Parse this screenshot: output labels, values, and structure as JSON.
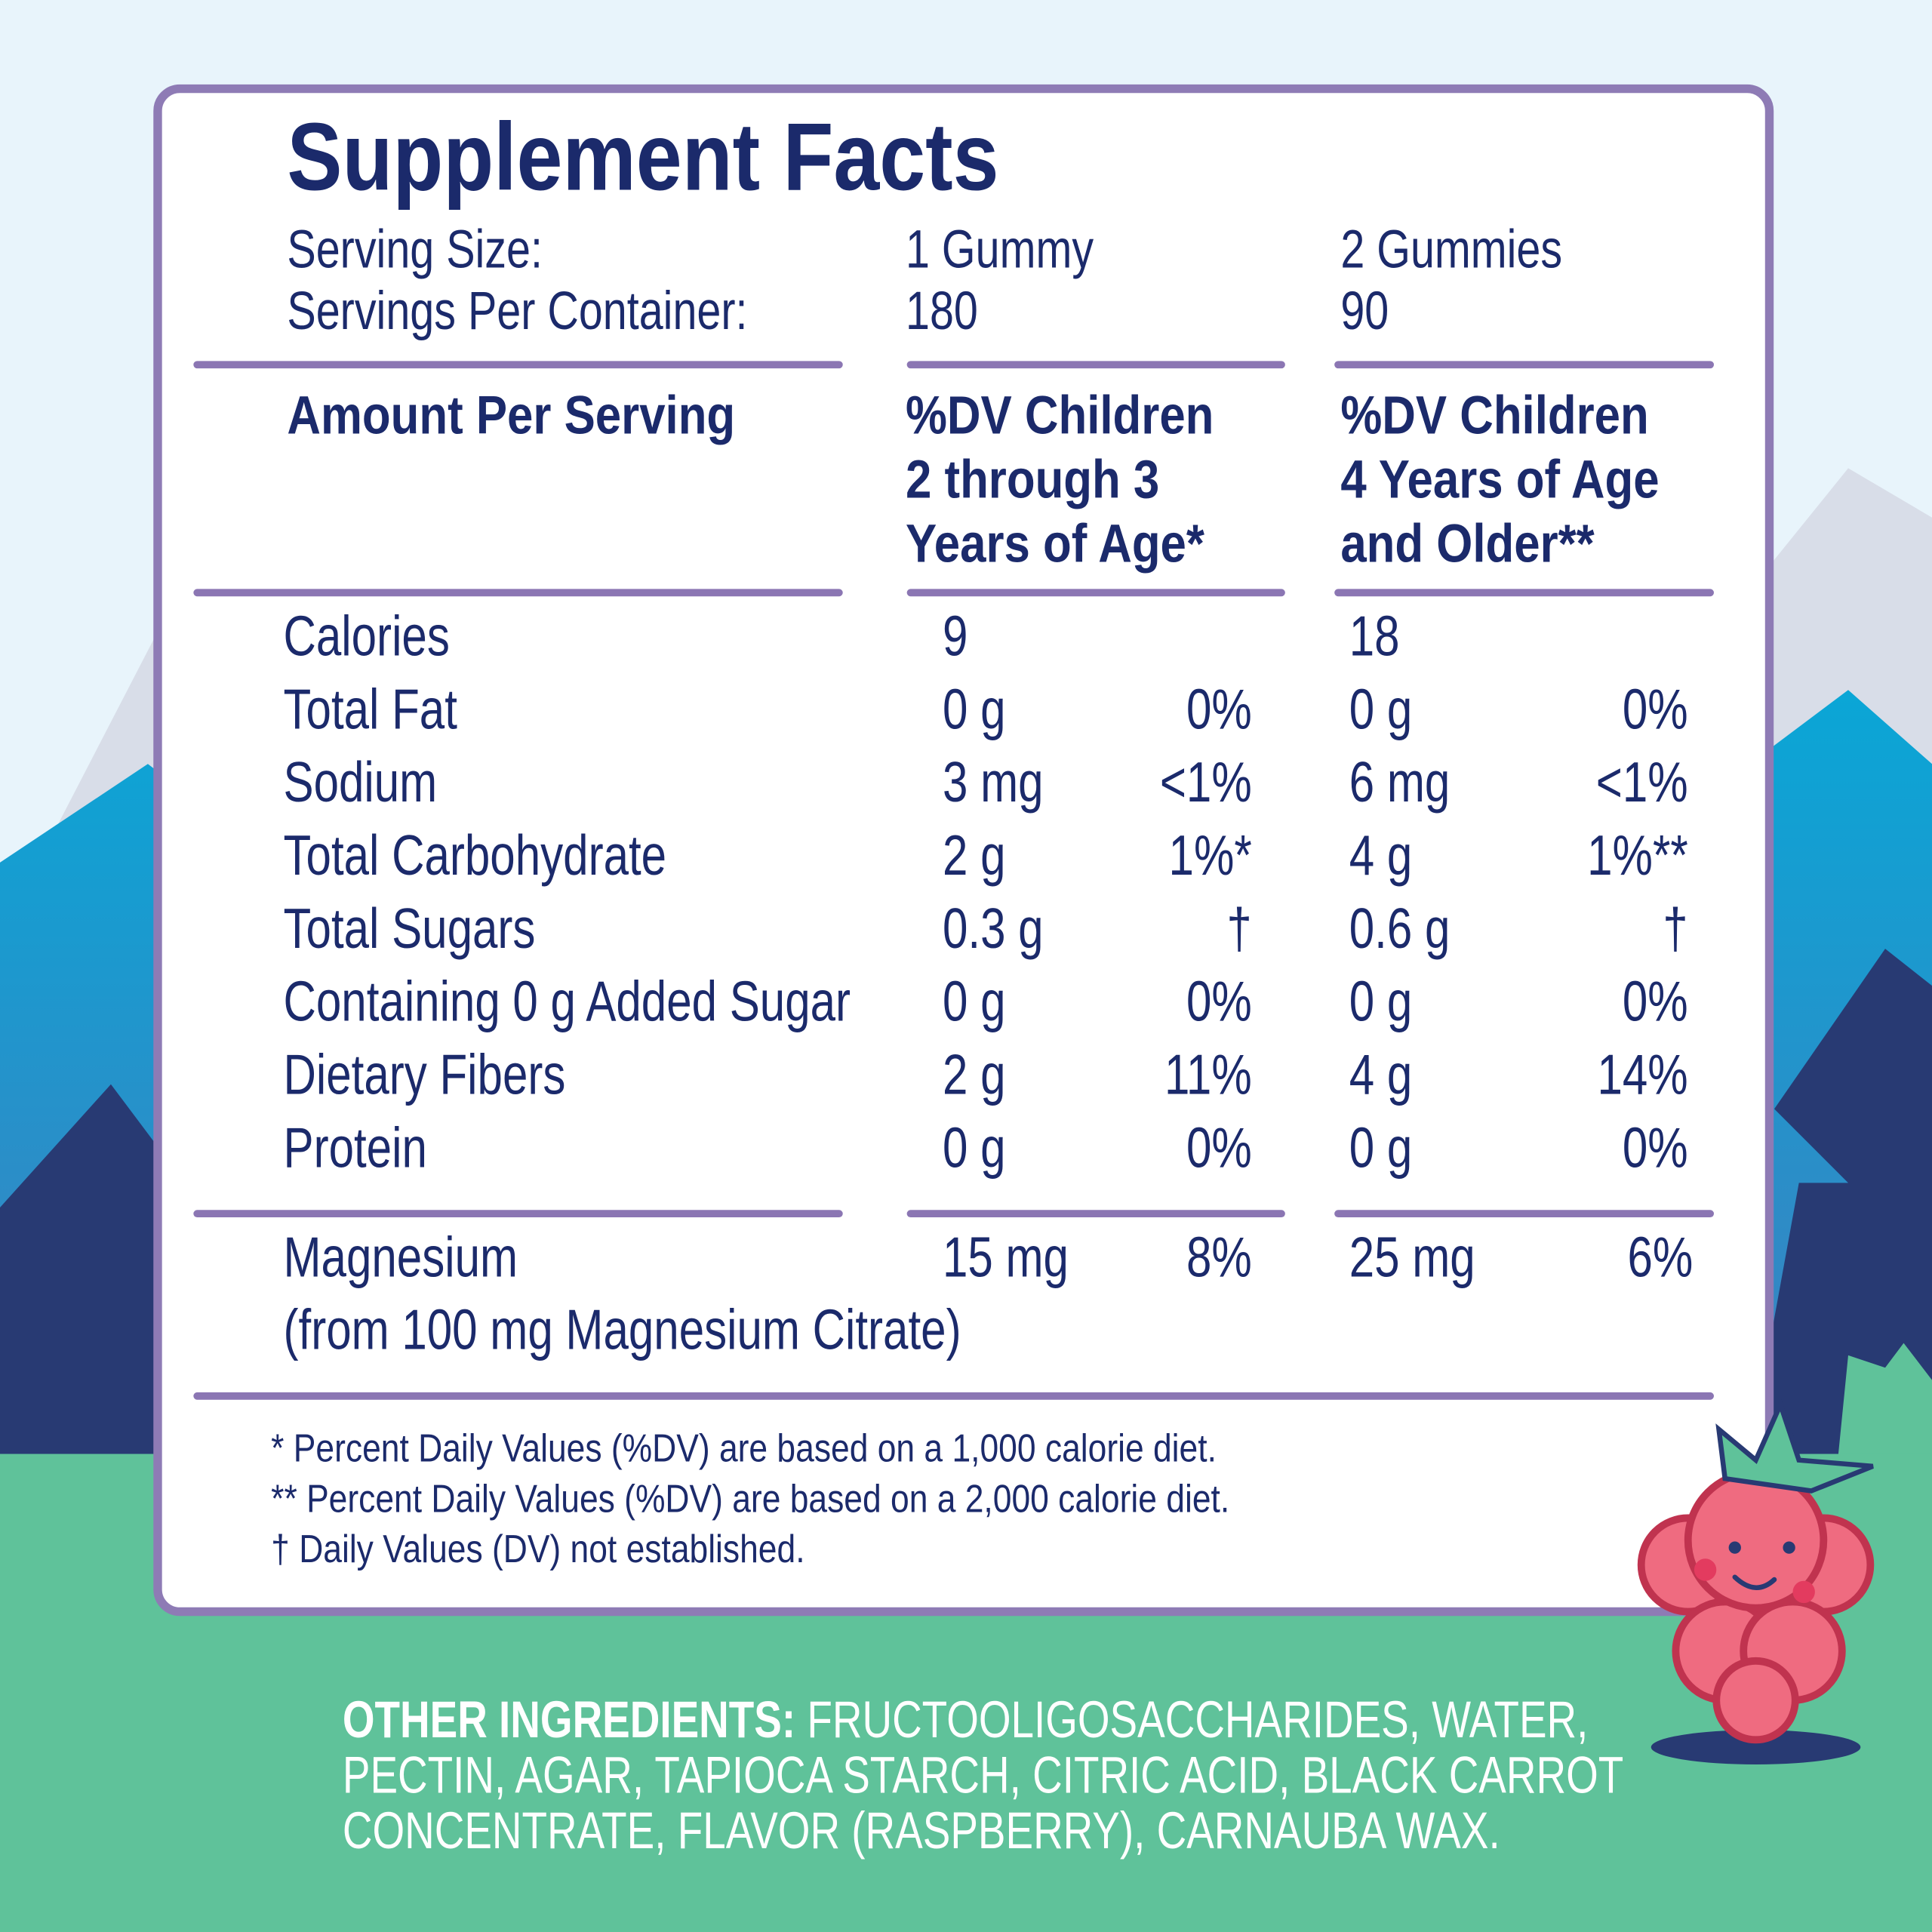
{
  "title": "Supplement Facts",
  "serving": {
    "size_label": "Serving Size:",
    "servings_label": "Servings Per Container:",
    "columns": [
      {
        "size": "1 Gummy",
        "servings": "180"
      },
      {
        "size": "2 Gummies",
        "servings": "90"
      }
    ]
  },
  "header": {
    "amount": "Amount Per Serving",
    "columns": [
      [
        "%DV Children",
        "2 through 3",
        "Years of Age*"
      ],
      [
        "%DV Children",
        "4 Years of Age",
        "and Older**"
      ]
    ]
  },
  "rows": [
    {
      "name": "Calories",
      "col1": {
        "amount": "9"
      },
      "col2": {
        "amount": "18"
      }
    },
    {
      "name": "Total Fat",
      "col1": {
        "amount": "0 g",
        "dv": "0%"
      },
      "col2": {
        "amount": "0 g",
        "dv": "0%"
      }
    },
    {
      "name": "Sodium",
      "col1": {
        "amount": "3 mg",
        "dv": "<1%"
      },
      "col2": {
        "amount": "6 mg",
        "dv": "<1%"
      }
    },
    {
      "name": "Total Carbohydrate",
      "col1": {
        "amount": "2 g",
        "dv": "1%*"
      },
      "col2": {
        "amount": "4 g",
        "dv": "1%**"
      }
    },
    {
      "name": "Total Sugars",
      "col1": {
        "amount": "0.3 g",
        "dv": "†"
      },
      "col2": {
        "amount": "0.6 g",
        "dv": "†"
      }
    },
    {
      "name": "Containing 0 g Added Sugar",
      "col1": {
        "amount": "0 g",
        "dv": "0%"
      },
      "col2": {
        "amount": "0 g",
        "dv": "0%"
      }
    },
    {
      "name": "Dietary Fibers",
      "col1": {
        "amount": "2 g",
        "dv": "11%"
      },
      "col2": {
        "amount": "4 g",
        "dv": "14%"
      }
    },
    {
      "name": "Protein",
      "col1": {
        "amount": "0 g",
        "dv": "0%"
      },
      "col2": {
        "amount": "0 g",
        "dv": "0%"
      }
    }
  ],
  "magnesium": {
    "name": "Magnesium",
    "source": "(from 100 mg Magnesium Citrate)",
    "col1": {
      "amount": "15 mg",
      "dv": "8%"
    },
    "col2": {
      "amount": "25 mg",
      "dv": "6%"
    }
  },
  "footnotes": [
    "* Percent Daily Values (%DV) are based on a 1,000 calorie diet.",
    "** Percent Daily Values (%DV) are based on a 2,000 calorie diet.",
    "† Daily Values (DV) not established."
  ],
  "ingredients": {
    "label": "OTHER INGREDIENTS:",
    "lines": [
      "FRUCTOOLIGOSACCHARIDES, WATER,",
      "PECTIN, AGAR, TAPIOCA STARCH, CITRIC ACID, BLACK CARROT",
      "CONCENTRATE, FLAVOR (RASPBERRY), CARNAUBA WAX."
    ]
  }
}
